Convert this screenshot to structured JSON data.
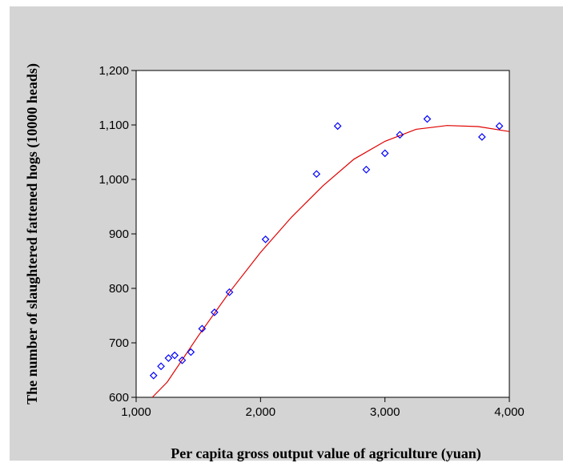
{
  "chart_data": {
    "type": "scatter",
    "title": "",
    "xlabel": "Per capita gross output value of agriculture (yuan)",
    "ylabel": "The number of slaughtered fattened hogs  (10000 heads)",
    "xlim": [
      1000,
      4000
    ],
    "ylim": [
      600,
      1200
    ],
    "x_ticks": [
      "1,000",
      "2,000",
      "3,000",
      "4,000"
    ],
    "y_ticks": [
      "600",
      "700",
      "800",
      "900",
      "1,000",
      "1,100",
      "1,200"
    ],
    "grid": false,
    "legend": "none",
    "series": [
      {
        "type": "scatter",
        "marker": "diamond",
        "color": "#0000ff",
        "points": [
          [
            1140,
            640
          ],
          [
            1200,
            657
          ],
          [
            1260,
            672
          ],
          [
            1310,
            677
          ],
          [
            1370,
            668
          ],
          [
            1440,
            683
          ],
          [
            1530,
            726
          ],
          [
            1630,
            756
          ],
          [
            1750,
            793
          ],
          [
            2040,
            890
          ],
          [
            2450,
            1010
          ],
          [
            2620,
            1098
          ],
          [
            2850,
            1018
          ],
          [
            3000,
            1048
          ],
          [
            3120,
            1082
          ],
          [
            3340,
            1111
          ],
          [
            3780,
            1078
          ],
          [
            3920,
            1098
          ]
        ]
      },
      {
        "type": "line",
        "fit": "quadratic",
        "color": "#e00000",
        "x": [
          1130,
          1250,
          1500,
          1750,
          2000,
          2250,
          2500,
          2750,
          3000,
          3250,
          3500,
          3750,
          4000
        ],
        "y": [
          600,
          628,
          713,
          793,
          866,
          931,
          988,
          1037,
          1070,
          1092,
          1099,
          1097,
          1088
        ]
      }
    ]
  }
}
